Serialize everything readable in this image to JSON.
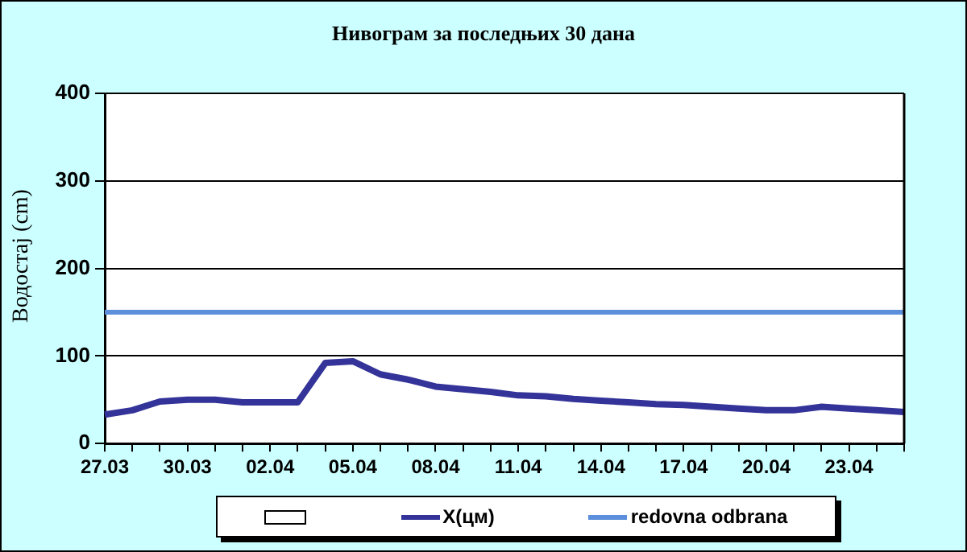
{
  "chart_data": {
    "type": "line",
    "title": "Нивограм за последњих 30 дана",
    "ylabel": "Водостај (cm)",
    "categories": [
      "27.03",
      null,
      null,
      "30.03",
      null,
      null,
      "02.04",
      null,
      null,
      "05.04",
      null,
      null,
      "08.04",
      null,
      null,
      "11.04",
      null,
      null,
      "14.04",
      null,
      null,
      "17.04",
      null,
      null,
      "20.04",
      null,
      null,
      "23.04",
      null,
      null
    ],
    "series": [
      {
        "name": "X(цм)",
        "color": "#333399",
        "values": [
          33,
          38,
          48,
          50,
          50,
          47,
          47,
          47,
          92,
          94,
          79,
          73,
          65,
          62,
          59,
          55,
          54,
          51,
          49,
          47,
          45,
          44,
          42,
          40,
          38,
          38,
          42,
          40,
          38,
          36
        ]
      }
    ],
    "ref_lines": [
      {
        "axis": "y",
        "value": 150,
        "label": "redovna odbrana",
        "color": "#5b8fdc"
      }
    ],
    "ylim": [
      0,
      400
    ],
    "yticks": [
      0,
      100,
      200,
      300,
      400
    ],
    "grid": "y",
    "legend": "bottom",
    "marker": "none",
    "line_style": "solid"
  }
}
